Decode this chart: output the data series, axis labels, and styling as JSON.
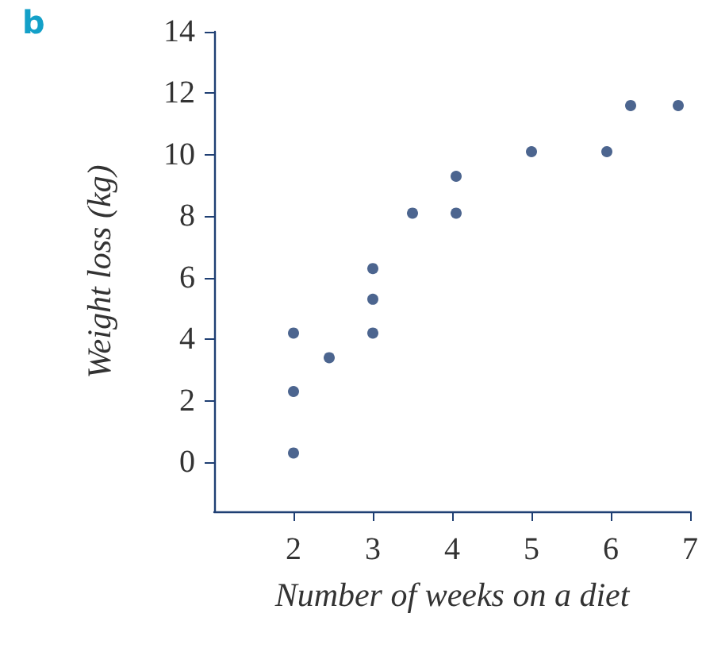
{
  "chart_data": {
    "type": "scatter",
    "xlabel": "Number of weeks on a diet",
    "ylabel": "Weight loss (kg)",
    "annotations": [
      "b"
    ],
    "x": [
      2,
      2,
      2,
      2.45,
      3,
      3,
      3,
      3.5,
      4.05,
      4.05,
      5,
      5.95,
      6.25,
      6.85
    ],
    "values": [
      0.3,
      2.3,
      4.2,
      3.4,
      4.2,
      5.3,
      6.3,
      8.1,
      8.1,
      9.3,
      10.1,
      10.1,
      11.6,
      11.6
    ],
    "color": "#1f3f73",
    "marker": "circle",
    "xlim": [
      1,
      7
    ],
    "xticks": [
      2,
      3,
      4,
      5,
      6,
      7
    ],
    "ylim": [
      -1.6,
      14
    ],
    "yticks": [
      0,
      2,
      4,
      6,
      8,
      10,
      12,
      14
    ],
    "grid": false
  }
}
